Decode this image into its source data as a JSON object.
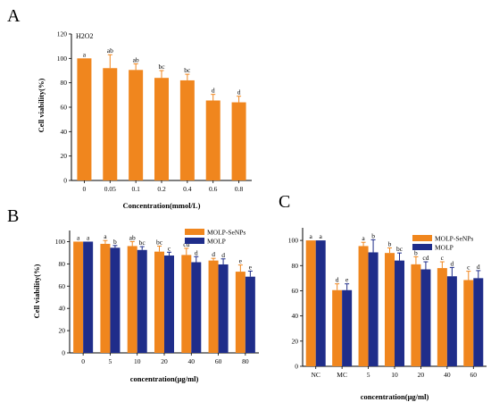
{
  "colors": {
    "orange": "#F0861E",
    "blue": "#1F2D8A",
    "axis": "#000000"
  },
  "chart_data": [
    {
      "id": "A",
      "panel_label": "A",
      "type": "bar",
      "annotation": "H2O2",
      "categories": [
        "0",
        "0.05",
        "0.1",
        "0.2",
        "0.4",
        "0.6",
        "0.8"
      ],
      "series": [
        {
          "name": "",
          "color": "#F0861E",
          "values": [
            100,
            92,
            90.5,
            84,
            82,
            65.5,
            64
          ],
          "errors": [
            0,
            11,
            5,
            6,
            5,
            5,
            5
          ],
          "letters": [
            "a",
            "ab",
            "ab",
            "bc",
            "bc",
            "d",
            "d"
          ]
        }
      ],
      "xlabel": "Concentration(mmol/L)",
      "ylabel": "Cell viability(%)",
      "ylim": [
        0,
        120
      ],
      "yticks": [
        0,
        20,
        40,
        60,
        80,
        100,
        120
      ],
      "legend": null
    },
    {
      "id": "B",
      "panel_label": "B",
      "type": "bar",
      "categories": [
        "0",
        "5",
        "10",
        "20",
        "40",
        "60",
        "80"
      ],
      "series": [
        {
          "name": "MOLP-SeNPs",
          "color": "#F0861E",
          "values": [
            100,
            98,
            96,
            91,
            88,
            83,
            73
          ],
          "errors": [
            0,
            3,
            4,
            5,
            6,
            2,
            6
          ],
          "letters": [
            "a",
            "a",
            "ab",
            "bc",
            "cd",
            "d",
            "e"
          ]
        },
        {
          "name": "MOLP",
          "color": "#1F2D8A",
          "values": [
            100,
            94.5,
            92.5,
            87.5,
            81.5,
            79.5,
            68.5
          ],
          "errors": [
            0,
            2,
            3,
            3,
            5,
            5,
            5
          ],
          "letters": [
            "a",
            "b",
            "bc",
            "c",
            "d",
            "d",
            "e"
          ]
        }
      ],
      "xlabel": "concentration(μg/ml)",
      "ylabel": "Cell viability(%)",
      "ylim": [
        0,
        110
      ],
      "yticks": [
        0,
        20,
        40,
        60,
        80,
        100
      ],
      "legend": "top-right"
    },
    {
      "id": "C",
      "panel_label": "C",
      "type": "bar",
      "categories": [
        "NC",
        "MC",
        "5",
        "10",
        "20",
        "40",
        "60"
      ],
      "series": [
        {
          "name": "MOLP-SeNPs",
          "color": "#F0861E",
          "values": [
            100,
            60.5,
            95.5,
            90,
            81,
            78,
            68.5
          ],
          "errors": [
            0,
            5,
            3,
            4,
            6,
            5,
            7
          ],
          "letters": [
            "a",
            "d",
            "a",
            "b",
            "b",
            "c",
            "c"
          ]
        },
        {
          "name": "MOLP",
          "color": "#1F2D8A",
          "values": [
            100,
            60.5,
            90.5,
            84,
            77,
            71.5,
            70
          ],
          "errors": [
            0,
            5,
            10,
            6,
            6,
            7,
            6
          ],
          "letters": [
            "a",
            "e",
            "b",
            "bc",
            "cd",
            "d",
            "d"
          ]
        }
      ],
      "xlabel": "concentration(μg/ml)",
      "ylabel": "",
      "ylim": [
        0,
        110
      ],
      "yticks": [
        0,
        20,
        40,
        60,
        80,
        100
      ],
      "legend": "top-right"
    }
  ]
}
